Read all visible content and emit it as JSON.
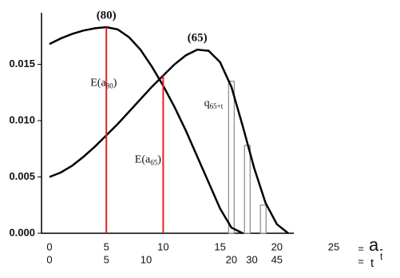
{
  "chart_data": {
    "type": "line",
    "x": [
      0,
      1,
      2,
      3,
      4,
      5,
      6,
      7,
      8,
      9,
      10,
      11,
      12,
      13,
      14,
      15,
      16,
      17,
      18,
      19,
      20,
      21
    ],
    "series": [
      {
        "name": "(80)",
        "color": "#000000",
        "values": [
          0.0168,
          0.0173,
          0.0177,
          0.018,
          0.0182,
          0.0183,
          0.0181,
          0.0174,
          0.0163,
          0.0148,
          0.0131,
          0.0112,
          0.0091,
          0.0068,
          0.0045,
          0.0022,
          0.0005,
          0,
          null,
          null,
          null,
          null
        ]
      },
      {
        "name": "(65)",
        "color": "#000000",
        "values": [
          0.005,
          0.0054,
          0.006,
          0.0068,
          0.0077,
          0.0087,
          0.0097,
          0.0108,
          0.0119,
          0.013,
          0.014,
          0.015,
          0.0158,
          0.0163,
          0.0162,
          0.0152,
          0.013,
          0.0095,
          0.0058,
          0.0027,
          0.0008,
          0
        ]
      }
    ],
    "xlim": [
      0,
      25
    ],
    "xticks": [
      0,
      5,
      10,
      15,
      20,
      25
    ],
    "ylim": [
      0,
      0.02
    ],
    "yticks": [
      {
        "value": 0,
        "label": "0.000"
      },
      0.005,
      {
        "value": 0.01,
        "label": "0.010"
      },
      0.015
    ],
    "t_ticks": [
      {
        "value": 0,
        "label": "0"
      },
      {
        "value": 5,
        "label": "5"
      },
      {
        "value": 8.5,
        "label": "10"
      },
      {
        "value": 16,
        "label": "20"
      },
      {
        "value": 17.8,
        "label": "30"
      },
      {
        "value": 20,
        "label": "45"
      }
    ],
    "x_label": "a",
    "x_label_sub": "t",
    "t_label": "t",
    "equals": "=",
    "red_lines": {
      "color": "#e8202a",
      "x": [
        5,
        10
      ]
    },
    "bars": {
      "x": [
        16,
        17.4,
        18.8
      ],
      "values": [
        0.0135,
        0.0078,
        0.0025
      ],
      "color": "#888888"
    },
    "annotations": [
      {
        "text": "E(a",
        "sub": "80",
        "end": ")",
        "x": 3.6,
        "y": 0.0133
      },
      {
        "text": "E(a",
        "sub": "65",
        "end": ")",
        "x": 7.5,
        "y": 0.0065
      },
      {
        "text": "q",
        "sub": "65+t",
        "end": "",
        "x": 13.6,
        "y": 0.0115
      }
    ]
  }
}
